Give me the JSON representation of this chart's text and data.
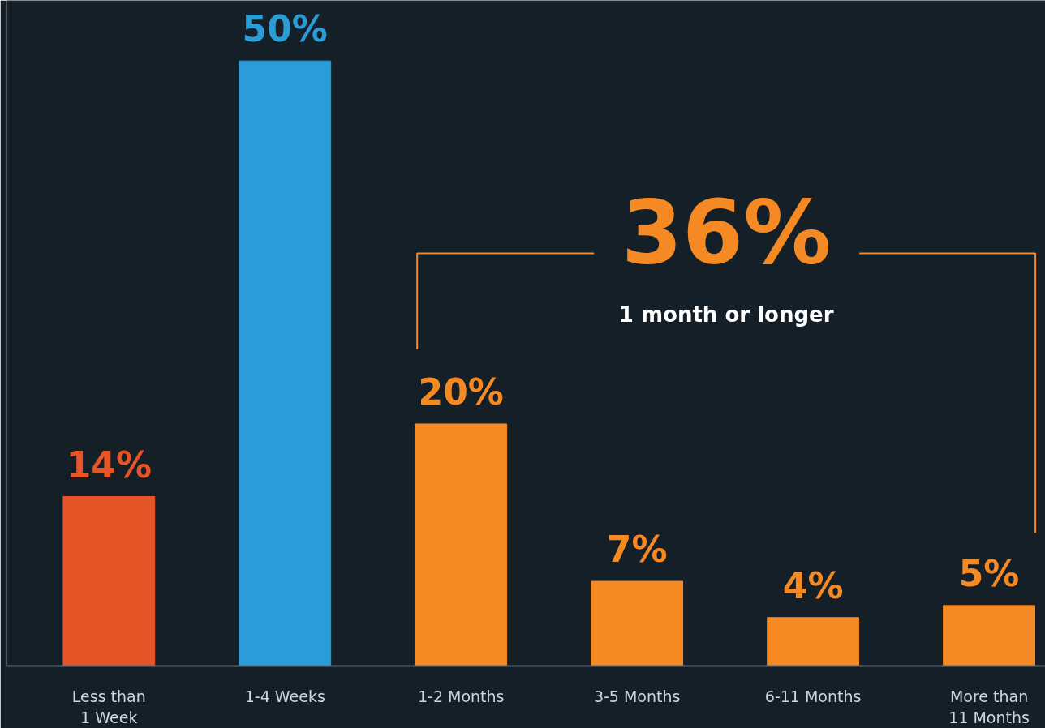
{
  "chart_data": {
    "type": "bar",
    "categories": [
      "Less than\n1 Week",
      "1-4 Weeks",
      "1-2 Months",
      "3-5 Months",
      "6-11 Months",
      "More than\n11 Months"
    ],
    "values": [
      14,
      50,
      20,
      7,
      4,
      5
    ],
    "colors": [
      "#e65527",
      "#2a9cd8",
      "#f58a24",
      "#f58a24",
      "#f58a24",
      "#f58a24"
    ],
    "value_labels": [
      "14%",
      "50%",
      "20%",
      "7%",
      "4%",
      "5%"
    ],
    "annotations": [
      "36%",
      "1 month or longer"
    ]
  }
}
